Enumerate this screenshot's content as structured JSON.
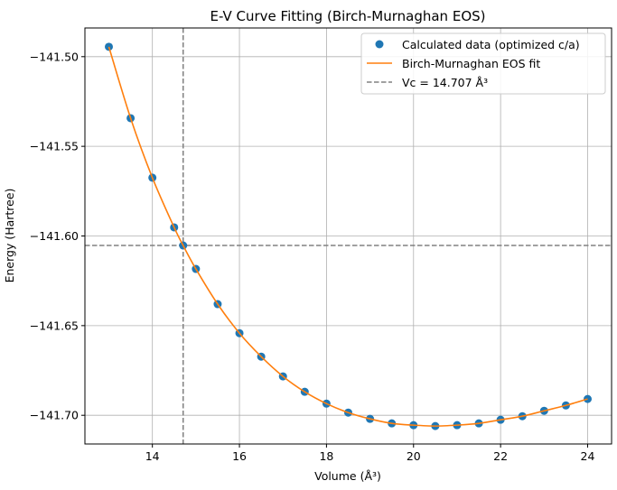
{
  "chart_data": {
    "type": "scatter",
    "title": "E-V Curve Fitting (Birch-Murnaghan EOS)",
    "xlabel": "Volume (Å³)",
    "ylabel": "Energy (Hartree)",
    "xlim": [
      12.45,
      24.55
    ],
    "ylim": [
      -141.716,
      -141.484
    ],
    "xticks": [
      14,
      16,
      18,
      20,
      22,
      24
    ],
    "xtick_labels": [
      "14",
      "16",
      "18",
      "20",
      "22",
      "24"
    ],
    "yticks": [
      -141.5,
      -141.55,
      -141.6,
      -141.65,
      -141.7
    ],
    "ytick_labels": [
      "−141.50",
      "−141.55",
      "−141.60",
      "−141.65",
      "−141.70"
    ],
    "grid": true,
    "legend_position": "top-right",
    "series": [
      {
        "name": "Calculated data (optimized c/a)",
        "kind": "scatter",
        "color": "#1f77b4",
        "x": [
          13,
          13.5,
          14,
          14.5,
          14.707,
          15,
          15.5,
          16,
          16.5,
          17,
          17.5,
          18,
          18.5,
          19,
          19.5,
          20,
          20.5,
          21,
          21.5,
          22,
          22.5,
          23,
          23.5,
          24
        ],
        "y": [
          -141.4945,
          -141.5343,
          -141.5675,
          -141.5952,
          -141.6053,
          -141.6184,
          -141.638,
          -141.6542,
          -141.6673,
          -141.6783,
          -141.6869,
          -141.6935,
          -141.6985,
          -141.702,
          -141.7045,
          -141.7055,
          -141.706,
          -141.7055,
          -141.7045,
          -141.7025,
          -141.7005,
          -141.6975,
          -141.6945,
          -141.6909
        ]
      },
      {
        "name": "Birch-Murnaghan EOS fit",
        "kind": "line",
        "color": "#ff7f0e"
      },
      {
        "name": "Vc = 14.707 Å³",
        "kind": "dashed-lines",
        "color": "#808080",
        "vline_x": 14.707,
        "hline_y": -141.6053
      }
    ]
  }
}
